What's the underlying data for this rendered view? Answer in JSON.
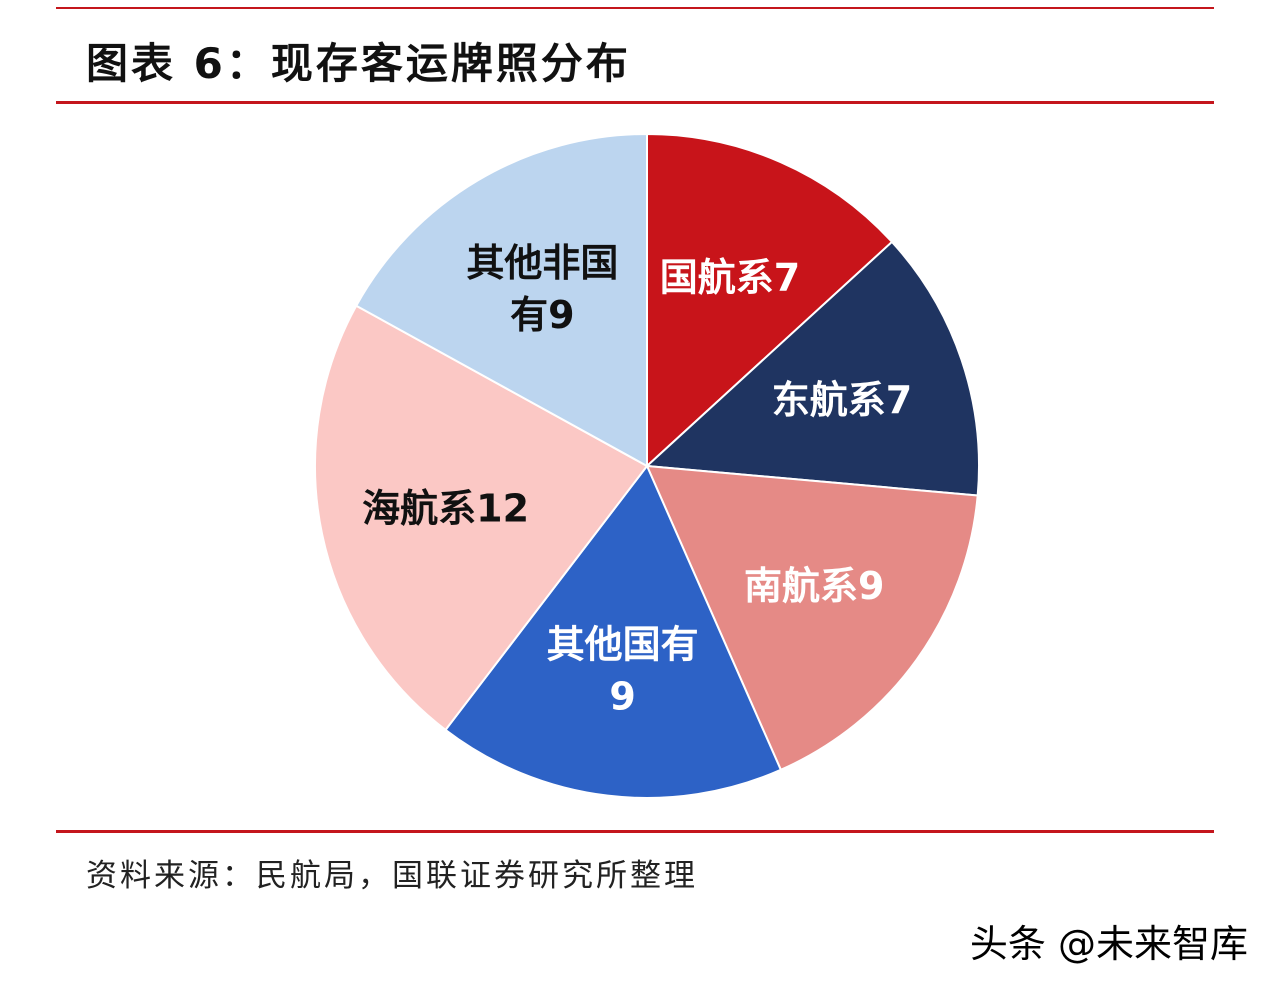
{
  "header": {
    "title": "图表 6：现存客运牌照分布"
  },
  "chart_data": {
    "type": "pie",
    "slices": [
      {
        "label": "国航系7",
        "label_lines": [
          "国航系7"
        ],
        "value": 7,
        "color": "#c8141a",
        "text_color": "#ffffff"
      },
      {
        "label": "东航系7",
        "label_lines": [
          "东航系7"
        ],
        "value": 7,
        "color": "#1f3461",
        "text_color": "#ffffff"
      },
      {
        "label": "南航系9",
        "label_lines": [
          "南航系9"
        ],
        "value": 9,
        "color": "#e58a86",
        "text_color": "#ffffff"
      },
      {
        "label": "其他国有9",
        "label_lines": [
          "其他国有",
          "9"
        ],
        "value": 9,
        "color": "#2d62c6",
        "text_color": "#ffffff"
      },
      {
        "label": "海航系12",
        "label_lines": [
          "海航系12"
        ],
        "value": 12,
        "color": "#fbc8c5",
        "text_color": "#111111"
      },
      {
        "label": "其他非国有9",
        "label_lines": [
          "其他非国",
          "有9"
        ],
        "value": 9,
        "color": "#bcd5ef",
        "text_color": "#111111"
      }
    ],
    "start_angle_deg": 0,
    "direction": "clockwise"
  },
  "footer": {
    "source": "资料来源：民航局，国联证券研究所整理"
  },
  "watermark": {
    "text": "头条 @未来智库"
  }
}
